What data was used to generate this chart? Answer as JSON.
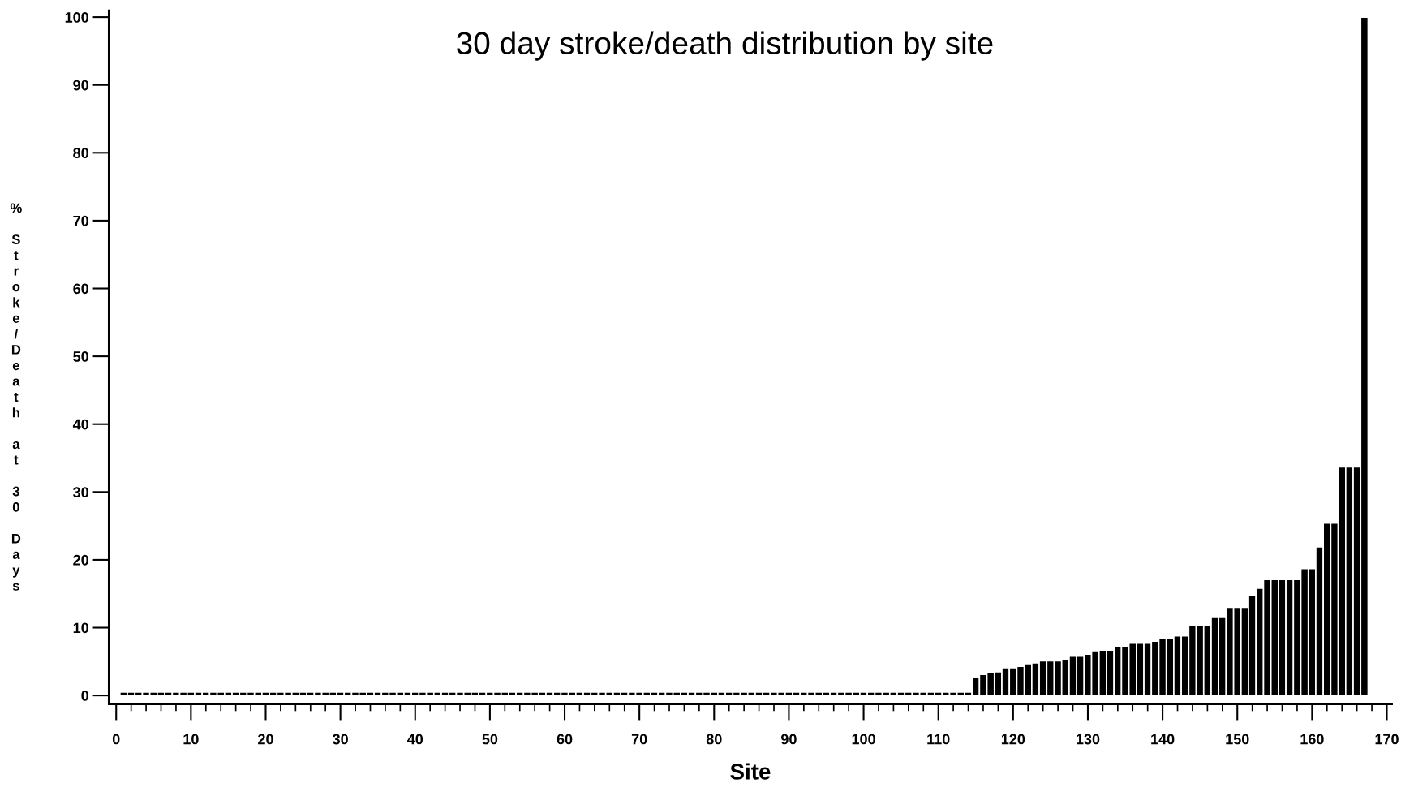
{
  "chart_data": {
    "type": "bar",
    "title": "30 day stroke/death distribution by site",
    "xlabel": "Site",
    "ylabel": "% Stroke/Death at 30 Days",
    "x": [
      1,
      2,
      3,
      4,
      5,
      6,
      7,
      8,
      9,
      10,
      11,
      12,
      13,
      14,
      15,
      16,
      17,
      18,
      19,
      20,
      21,
      22,
      23,
      24,
      25,
      26,
      27,
      28,
      29,
      30,
      31,
      32,
      33,
      34,
      35,
      36,
      37,
      38,
      39,
      40,
      41,
      42,
      43,
      44,
      45,
      46,
      47,
      48,
      49,
      50,
      51,
      52,
      53,
      54,
      55,
      56,
      57,
      58,
      59,
      60,
      61,
      62,
      63,
      64,
      65,
      66,
      67,
      68,
      69,
      70,
      71,
      72,
      73,
      74,
      75,
      76,
      77,
      78,
      79,
      80,
      81,
      82,
      83,
      84,
      85,
      86,
      87,
      88,
      89,
      90,
      91,
      92,
      93,
      94,
      95,
      96,
      97,
      98,
      99,
      100,
      101,
      102,
      103,
      104,
      105,
      106,
      107,
      108,
      109,
      110,
      111,
      112,
      113,
      114,
      115,
      116,
      117,
      118,
      119,
      120,
      121,
      122,
      123,
      124,
      125,
      126,
      127,
      128,
      129,
      130,
      131,
      132,
      133,
      134,
      135,
      136,
      137,
      138,
      139,
      140,
      141,
      142,
      143,
      144,
      145,
      146,
      147,
      148,
      149,
      150,
      151,
      152,
      153,
      154,
      155,
      156,
      157,
      158,
      159,
      160,
      161,
      162,
      163,
      164,
      165,
      166,
      167
    ],
    "values": [
      0.5,
      0.5,
      0.5,
      0.5,
      0.5,
      0.5,
      0.5,
      0.5,
      0.5,
      0.5,
      0.5,
      0.5,
      0.5,
      0.5,
      0.5,
      0.5,
      0.5,
      0.5,
      0.5,
      0.5,
      0.5,
      0.5,
      0.5,
      0.5,
      0.5,
      0.5,
      0.5,
      0.5,
      0.5,
      0.5,
      0.5,
      0.5,
      0.5,
      0.5,
      0.5,
      0.5,
      0.5,
      0.5,
      0.5,
      0.5,
      0.5,
      0.5,
      0.5,
      0.5,
      0.5,
      0.5,
      0.5,
      0.5,
      0.5,
      0.5,
      0.5,
      0.5,
      0.5,
      0.5,
      0.5,
      0.5,
      0.5,
      0.5,
      0.5,
      0.5,
      0.5,
      0.5,
      0.5,
      0.5,
      0.5,
      0.5,
      0.5,
      0.5,
      0.5,
      0.5,
      0.5,
      0.5,
      0.5,
      0.5,
      0.5,
      0.5,
      0.5,
      0.5,
      0.5,
      0.5,
      0.5,
      0.5,
      0.5,
      0.5,
      0.5,
      0.5,
      0.5,
      0.5,
      0.5,
      0.5,
      0.5,
      0.5,
      0.5,
      0.5,
      0.5,
      0.5,
      0.5,
      0.5,
      0.5,
      0.5,
      0.5,
      0.5,
      0.5,
      0.5,
      0.5,
      0.5,
      0.5,
      0.5,
      0.5,
      0.5,
      0.5,
      0.5,
      0.5,
      0.5,
      2.7,
      3.1,
      3.4,
      3.5,
      4.1,
      4.1,
      4.3,
      4.7,
      4.8,
      5.1,
      5.1,
      5.1,
      5.3,
      5.8,
      5.8,
      6.1,
      6.6,
      6.7,
      6.7,
      7.3,
      7.3,
      7.7,
      7.7,
      7.7,
      8.0,
      8.4,
      8.5,
      8.8,
      8.8,
      10.4,
      10.4,
      10.4,
      11.5,
      11.5,
      13.0,
      13.0,
      13.0,
      14.7,
      15.8,
      17.1,
      17.1,
      17.1,
      17.1,
      17.1,
      18.7,
      18.7,
      21.9,
      25.4,
      25.4,
      33.7,
      33.7,
      33.7,
      100
    ],
    "color": "#000000",
    "xlim": [
      -1,
      170.7
    ],
    "xticks": [
      0,
      10,
      20,
      30,
      40,
      50,
      60,
      70,
      80,
      90,
      100,
      110,
      120,
      130,
      140,
      150,
      160,
      170
    ],
    "ylim": [
      -1.3,
      101
    ],
    "yticks": [
      0,
      10,
      20,
      30,
      40,
      50,
      60,
      70,
      80,
      90,
      100
    ],
    "grid": false,
    "legend": false
  }
}
